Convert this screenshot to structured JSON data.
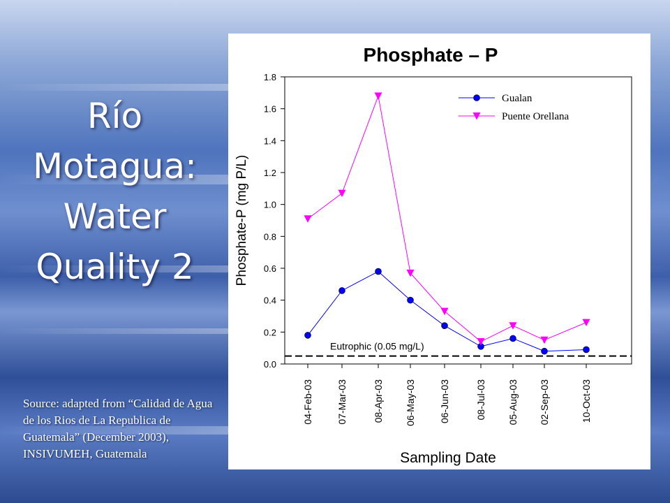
{
  "slide": {
    "title_lines": [
      "Río",
      "Motagua:",
      "Water",
      "Quality 2"
    ],
    "source_text": "Source: adapted from “Calidad de Agua de los Rios de La Republica de Guatemala” (December 2003), INSIVUMEH, Guatemala"
  },
  "chart_data": {
    "type": "line",
    "title": "Phosphate – P",
    "xlabel": "Sampling Date",
    "ylabel": "Phosphate-P (mg P/L)",
    "categories": [
      "04-Feb-03",
      "07-Mar-03",
      "08-Apr-03",
      "06-May-03",
      "06-Jun-03",
      "08-Jul-03",
      "05-Aug-03",
      "02-Sep-03",
      "10-Oct-03"
    ],
    "ylim": [
      0,
      1.8
    ],
    "yticks": [
      "0.0",
      "0.2",
      "0.4",
      "0.6",
      "0.8",
      "1.0",
      "1.2",
      "1.4",
      "1.6",
      "1.8"
    ],
    "grid": false,
    "legend_position": "top-right",
    "series": [
      {
        "name": "Gualan",
        "marker": "circle",
        "color": "#0000ff",
        "values": [
          0.18,
          0.46,
          0.58,
          0.4,
          0.24,
          0.11,
          0.16,
          0.08,
          0.09
        ]
      },
      {
        "name": "Puente Orellana",
        "marker": "triangle-down",
        "color": "#ff00ff",
        "values": [
          0.91,
          1.07,
          1.68,
          0.57,
          0.33,
          0.14,
          0.24,
          0.15,
          0.26
        ]
      }
    ],
    "reference_line": {
      "label": "Eutrophic (0.05 mg/L)",
      "value": 0.05,
      "style": "dashed"
    }
  }
}
